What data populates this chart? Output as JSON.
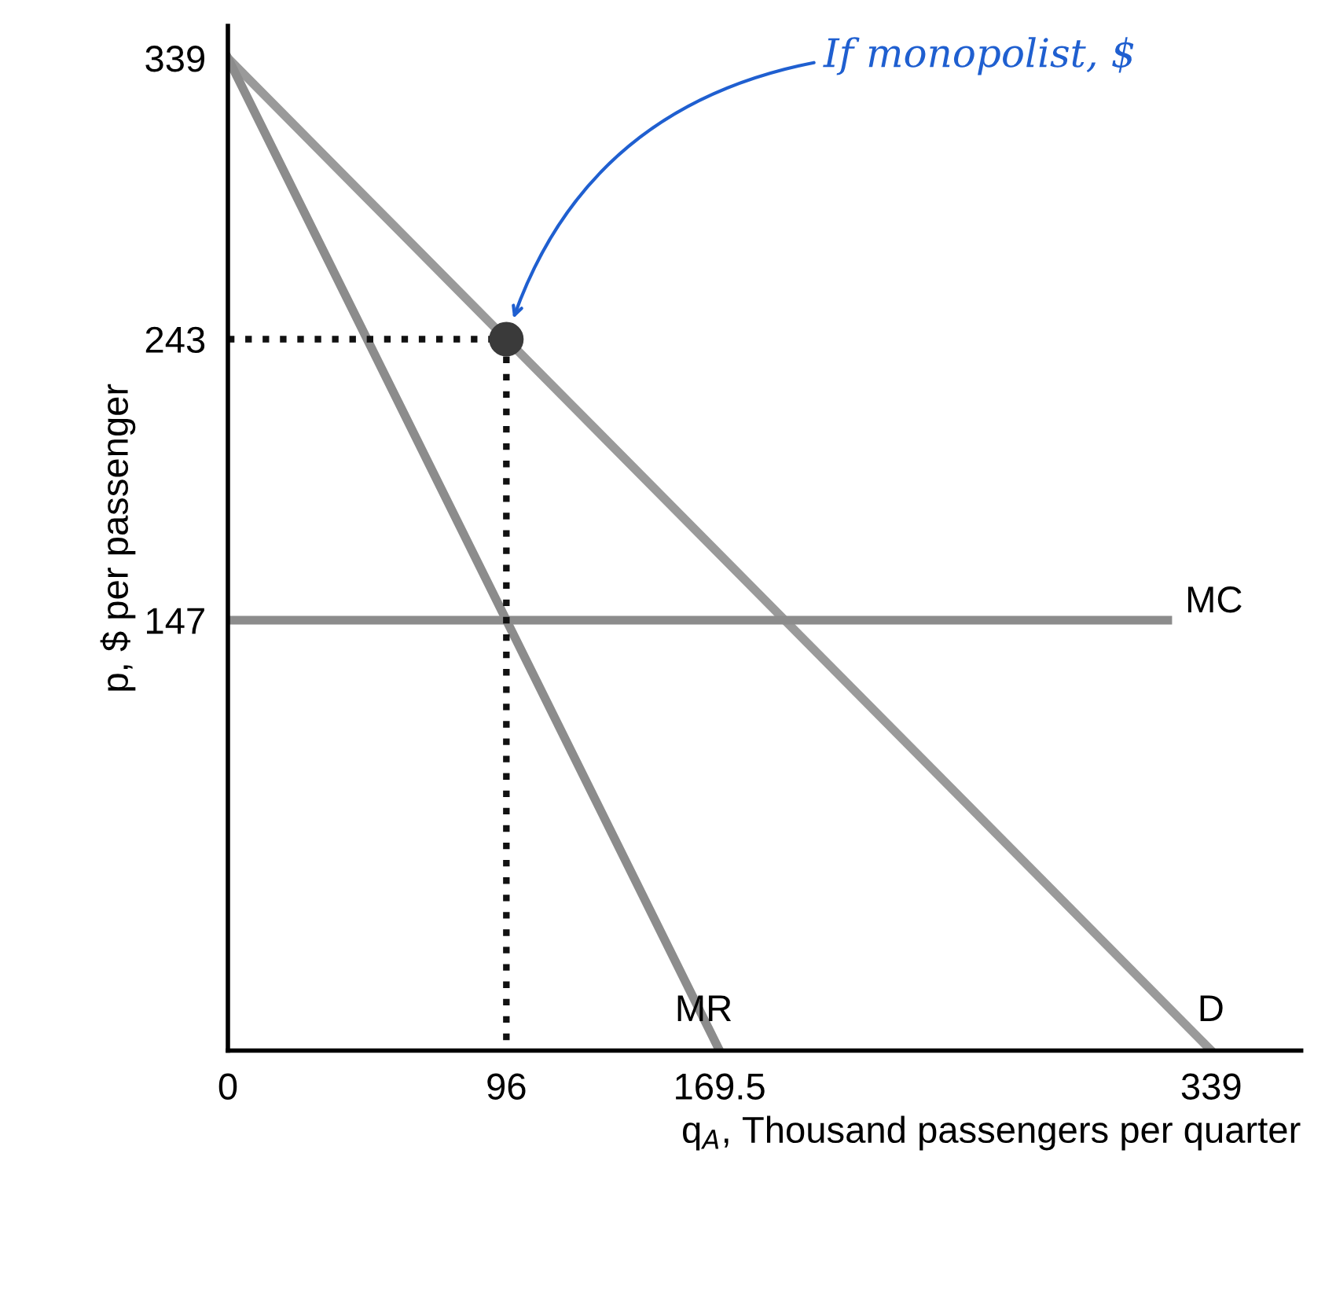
{
  "chart_data": {
    "type": "line",
    "xlabel": "q$_{A}$, Thousand passengers per quarter",
    "ylabel": "p, $ per passenger",
    "xlim": [
      0,
      370
    ],
    "ylim": [
      0,
      350
    ],
    "xticks": [
      0,
      96,
      169.5,
      339
    ],
    "yticks": [
      147,
      243,
      339
    ],
    "grid": false,
    "legend": false,
    "series": [
      {
        "name": "D",
        "color": "#9a9a9a",
        "x": [
          0,
          339
        ],
        "values": [
          339,
          0
        ]
      },
      {
        "name": "MR",
        "color": "#8c8c8c",
        "x": [
          0,
          169.5
        ],
        "values": [
          339,
          0
        ]
      },
      {
        "name": "MC",
        "color": "#8c8c8c",
        "x": [
          0,
          324
        ],
        "values": [
          147,
          147
        ]
      },
      {
        "color": "#111111",
        "x": [
          0,
          96
        ],
        "values": [
          243,
          243
        ],
        "line_style": "dotted"
      },
      {
        "color": "#111111",
        "x": [
          96,
          96
        ],
        "values": [
          243,
          0
        ],
        "line_style": "dotted"
      },
      {
        "type": "scatter",
        "color": "#3a3a3a",
        "x": [
          96
        ],
        "values": [
          243
        ],
        "marker": "circle"
      }
    ],
    "annotations": [
      "If monopolist, $"
    ]
  }
}
